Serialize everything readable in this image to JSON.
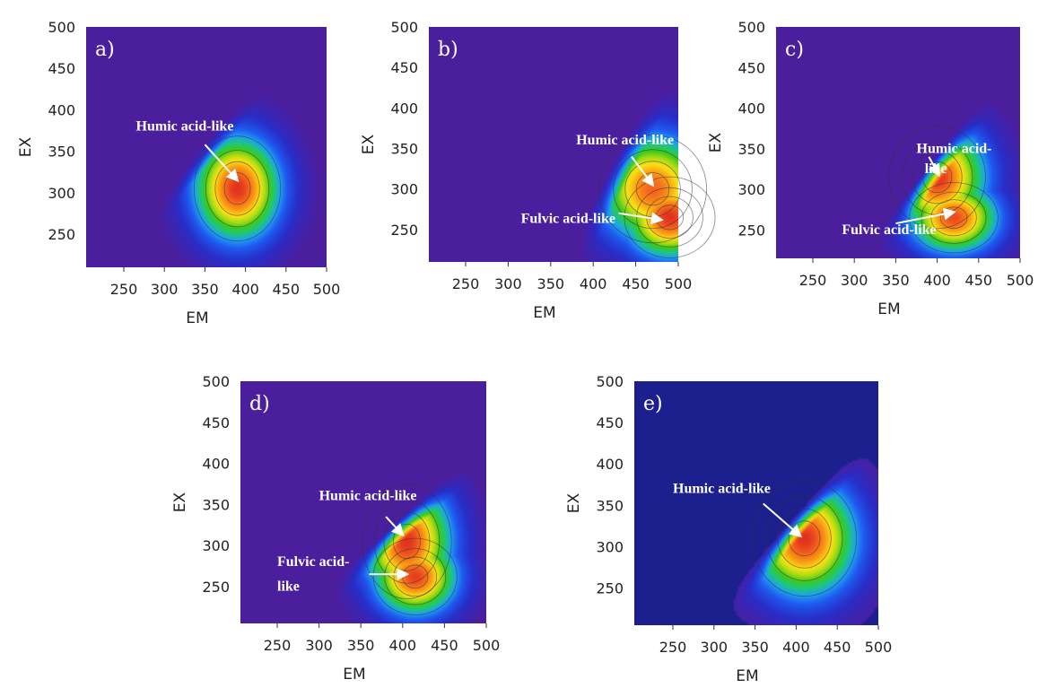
{
  "chart_data": [
    {
      "type": "heatmap",
      "panel_label": "a)",
      "xlabel": "EM",
      "ylabel": "EX",
      "xlim": [
        210,
        500
      ],
      "ylim": [
        210,
        500
      ],
      "x_ticks": [
        250,
        300,
        350,
        400,
        450,
        500
      ],
      "y_ticks": [
        250,
        300,
        350,
        400,
        450,
        500
      ],
      "background": "#4b1e9e",
      "peaks": [
        {
          "em": 390,
          "ex": 305,
          "intensity": 1.0,
          "sx": 32,
          "sy": 38
        }
      ],
      "fronts": [
        [
          260,
          225
        ],
        [
          470,
          470
        ]
      ],
      "annotations": [
        {
          "text": "Humic acid-like",
          "text_em": 265,
          "text_ex": 375,
          "arrow_from": [
            350,
            358
          ],
          "arrow_to": [
            390,
            315
          ]
        }
      ]
    },
    {
      "type": "heatmap",
      "panel_label": "b)",
      "xlabel": "EM",
      "ylabel": "EX",
      "xlim": [
        210,
        500
      ],
      "ylim": [
        210,
        500
      ],
      "x_ticks": [
        250,
        300,
        350,
        400,
        450,
        500
      ],
      "y_ticks": [
        250,
        300,
        350,
        400,
        450,
        500
      ],
      "background": "#4b1e9e",
      "peaks": [
        {
          "em": 470,
          "ex": 300,
          "intensity": 0.92,
          "sx": 38,
          "sy": 40
        },
        {
          "em": 490,
          "ex": 265,
          "intensity": 1.0,
          "sx": 32,
          "sy": 30
        }
      ],
      "fronts": [
        [
          390,
          210
        ],
        [
          500,
          430
        ]
      ],
      "annotations": [
        {
          "text": "Humic acid-like",
          "text_em": 380,
          "text_ex": 355,
          "arrow_from": [
            445,
            340
          ],
          "arrow_to": [
            470,
            305
          ]
        },
        {
          "text": "Fulvic acid-like",
          "text_em": 315,
          "text_ex": 258,
          "arrow_from": [
            430,
            270
          ],
          "arrow_to": [
            480,
            262
          ]
        }
      ]
    },
    {
      "type": "heatmap",
      "panel_label": "c)",
      "xlabel": "EM",
      "ylabel": "EX",
      "xlim": [
        210,
        500
      ],
      "ylim": [
        215,
        500
      ],
      "x_ticks": [
        250,
        300,
        350,
        400,
        450,
        500
      ],
      "y_ticks": [
        250,
        300,
        350,
        400,
        450,
        500
      ],
      "background": "#4b1e9e",
      "peaks": [
        {
          "em": 400,
          "ex": 315,
          "intensity": 1.0,
          "sx": 35,
          "sy": 38
        },
        {
          "em": 420,
          "ex": 265,
          "intensity": 0.96,
          "sx": 32,
          "sy": 26
        }
      ],
      "fronts": [
        [
          330,
          215
        ],
        [
          500,
          440
        ]
      ],
      "annotations": [
        {
          "text": "Humic acid-",
          "text_em": 375,
          "text_ex": 345,
          "arrow_from": [
            390,
            340
          ],
          "arrow_to": [
            402,
            318
          ]
        },
        {
          "text": "like",
          "text_em": 385,
          "text_ex": 320
        },
        {
          "text": "Fulvic acid-like",
          "text_em": 285,
          "text_ex": 245,
          "arrow_from": [
            350,
            258
          ],
          "arrow_to": [
            420,
            272
          ]
        }
      ]
    },
    {
      "type": "heatmap",
      "panel_label": "d)",
      "xlabel": "EM",
      "ylabel": "EX",
      "xlim": [
        210,
        500
      ],
      "ylim": [
        205,
        500
      ],
      "x_ticks": [
        250,
        300,
        350,
        400,
        450,
        500
      ],
      "y_ticks": [
        250,
        300,
        350,
        400,
        450,
        500
      ],
      "background": "#4b1e9e",
      "peaks": [
        {
          "em": 405,
          "ex": 305,
          "intensity": 1.0,
          "sx": 32,
          "sy": 42
        },
        {
          "em": 415,
          "ex": 262,
          "intensity": 0.98,
          "sx": 30,
          "sy": 28
        }
      ],
      "fronts": [
        [
          290,
          205
        ],
        [
          500,
          400
        ]
      ],
      "annotations": [
        {
          "text": "Humic acid-like",
          "text_em": 300,
          "text_ex": 355,
          "arrow_from": [
            380,
            335
          ],
          "arrow_to": [
            400,
            313
          ]
        },
        {
          "text": "Fulvic acid-",
          "text_em": 250,
          "text_ex": 275,
          "arrow_from": [
            360,
            265
          ],
          "arrow_to": [
            405,
            265
          ]
        },
        {
          "text": "like",
          "text_em": 250,
          "text_ex": 245
        }
      ]
    },
    {
      "type": "heatmap",
      "panel_label": "e)",
      "xlabel": "EM",
      "ylabel": "EX",
      "xlim": [
        210,
        500
      ],
      "ylim": [
        205,
        500
      ],
      "x_ticks": [
        250,
        300,
        350,
        400,
        450,
        500
      ],
      "y_ticks": [
        250,
        300,
        350,
        400,
        450,
        500
      ],
      "background": "#1c1f8e",
      "peaks": [
        {
          "em": 410,
          "ex": 310,
          "intensity": 1.0,
          "sx": 38,
          "sy": 42
        }
      ],
      "fronts": [
        [
          310,
          205
        ],
        [
          500,
          420
        ]
      ],
      "annotations": [
        {
          "text": "Humic acid-like",
          "text_em": 250,
          "text_ex": 365,
          "arrow_from": [
            360,
            352
          ],
          "arrow_to": [
            405,
            313
          ]
        }
      ]
    }
  ]
}
